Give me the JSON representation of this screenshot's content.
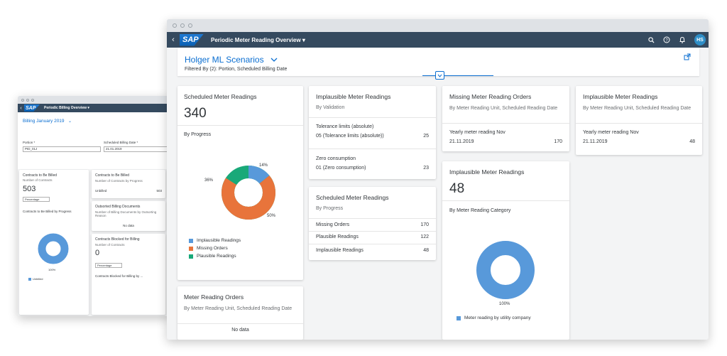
{
  "colors": {
    "shell": "#354a5f",
    "accent": "#0a6ed1",
    "blue": "#5899da",
    "orange": "#e8743b",
    "green": "#19a979"
  },
  "back_window": {
    "app_title": "Periodic Billing Overview ▾",
    "logo": "SAP",
    "variant": "Billing January 2019",
    "filters": [
      {
        "label": "Portion *",
        "value": "PID_01J"
      },
      {
        "label": "Scheduled Billing Date *",
        "value": "21.01.2019"
      }
    ],
    "card1": {
      "title": "Contracts to Be Billed",
      "sub": "Number of Contracts",
      "value": "503",
      "select": "Percentage",
      "chart_label": "Contracts to Be Billed by Progress",
      "pct": "100%",
      "legend": "Unbilled"
    },
    "card2": {
      "title": "Contracts to Be Billed",
      "sub": "Number of Contracts by Progress",
      "row_label": "Unbilled",
      "row_value": "503"
    },
    "card3": {
      "title": "Outsorted Billing Documents",
      "sub": "Number of Billing Documents by Outsorting Reason",
      "nodata": "No data"
    },
    "card4": {
      "title": "Contracts Blocked for Billing",
      "sub": "Number of Contracts",
      "value": "0",
      "select": "Percentage",
      "footer": "Contracts Blocked for Billing by ..."
    }
  },
  "front_window": {
    "app_title": "Periodic Meter Reading Overview ▾",
    "logo": "SAP",
    "avatar": "HS",
    "header": {
      "title": "Holger ML Scenarios",
      "filtered_by": "Filtered By (2): Portion, Scheduled Billing Date"
    },
    "card_scheduled": {
      "title": "Scheduled Meter Readings",
      "value": "340",
      "sub": "By Progress",
      "labels": {
        "blue": "14%",
        "orange": "50%",
        "green": "36%"
      },
      "legend": [
        "Implausible Readings",
        "Missing Orders",
        "Plausible Readings"
      ]
    },
    "card_orders": {
      "title": "Meter Reading Orders",
      "sub": "By Meter Reading Unit, Scheduled Reading Date",
      "nodata": "No data"
    },
    "card_implausible_validation": {
      "title": "Implausible Meter Readings",
      "sub": "By Validation",
      "groups": [
        {
          "head": "Tolerance limits (absolute)",
          "label": "05 (Tolerance limits (absolute))",
          "value": "25"
        },
        {
          "head": "Zero consumption",
          "label": "01 (Zero consumption)",
          "value": "23"
        }
      ]
    },
    "card_scheduled_list": {
      "title": "Scheduled Meter Readings",
      "sub": "By Progress",
      "rows": [
        {
          "label": "Missing Orders",
          "value": "170"
        },
        {
          "label": "Plausible Readings",
          "value": "122"
        },
        {
          "label": "Implausible Readings",
          "value": "48"
        }
      ]
    },
    "card_missing_orders": {
      "title": "Missing Meter Reading Orders",
      "sub": "By Meter Reading Unit, Scheduled Reading Date",
      "item": "Yearly meter reading Nov",
      "date": "21.11.2019",
      "value": "170"
    },
    "card_implausible_category": {
      "title": "Implausible Meter Readings",
      "value": "48",
      "sub": "By Meter Reading Category",
      "pct": "100%",
      "legend": "Meter reading by utility company"
    },
    "card_implausible_unit": {
      "title": "Implausible Meter Readings",
      "sub": "By Meter Reading Unit, Scheduled Reading Date",
      "item": "Yearly meter reading Nov",
      "date": "21.11.2019",
      "value": "48"
    }
  }
}
